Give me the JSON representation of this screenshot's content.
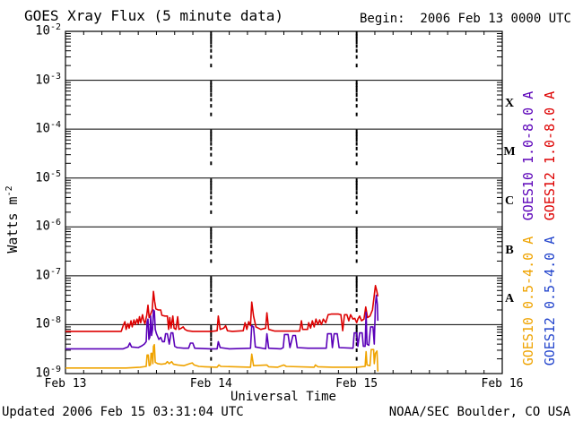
{
  "header": {
    "title": "GOES Xray Flux (5 minute data)",
    "begin_label": "Begin:  2006 Feb 13 0000 UTC"
  },
  "footer": {
    "updated": "Updated 2006 Feb 15 03:31:04 UTC",
    "source": "NOAA/SEC Boulder, CO USA"
  },
  "chart_data": {
    "type": "line",
    "title": "GOES Xray Flux (5 minute data)",
    "xlabel": "Universal Time",
    "ylabel_base": "Watts m",
    "ylabel_exp": "-2",
    "y_scale": "log",
    "ylim": [
      1e-09,
      0.01
    ],
    "y_tick_exponents": [
      -2,
      -3,
      -4,
      -5,
      -6,
      -7,
      -8,
      -9
    ],
    "x_ticks": [
      {
        "label": "Feb 13",
        "hour": 0
      },
      {
        "label": "Feb 14",
        "hour": 24
      },
      {
        "label": "Feb 15",
        "hour": 48
      },
      {
        "label": "Feb 16",
        "hour": 72
      }
    ],
    "x_minor_tick_hours": 3,
    "xlim_hours": [
      0,
      72
    ],
    "grid": {
      "horizontal_decade_lines": true,
      "dotted_vertical_day_lines_hours": [
        24,
        48
      ]
    },
    "flux_class_letters": [
      "X",
      "M",
      "C",
      "B",
      "A"
    ],
    "legend_position": "right-rotated",
    "series": [
      {
        "name": "GOES12 1.0-8.0 A",
        "color": "#dd0000",
        "points": [
          [
            0,
            7.3e-09
          ],
          [
            9.2,
            7.3e-09
          ],
          [
            9.5,
            9.5e-09
          ],
          [
            9.8,
            1.15e-08
          ],
          [
            10.0,
            8e-09
          ],
          [
            10.3,
            1.05e-08
          ],
          [
            10.5,
            8.5e-09
          ],
          [
            10.8,
            1.2e-08
          ],
          [
            11.0,
            9e-09
          ],
          [
            11.3,
            1.25e-08
          ],
          [
            11.5,
            1e-08
          ],
          [
            11.8,
            1.3e-08
          ],
          [
            12.0,
            1.05e-08
          ],
          [
            12.2,
            1.45e-08
          ],
          [
            12.4,
            1.1e-08
          ],
          [
            12.7,
            1.6e-08
          ],
          [
            12.9,
            1.2e-08
          ],
          [
            13.1,
            1.05e-08
          ],
          [
            13.4,
            1.55e-08
          ],
          [
            13.6,
            2.5e-08
          ],
          [
            13.8,
            1.4e-08
          ],
          [
            14.0,
            1.6e-08
          ],
          [
            14.3,
            2e-08
          ],
          [
            14.5,
            4.8e-08
          ],
          [
            14.7,
            3e-08
          ],
          [
            14.9,
            2.1e-08
          ],
          [
            15.3,
            2e-08
          ],
          [
            15.7,
            2e-08
          ],
          [
            15.9,
            1.55e-08
          ],
          [
            16.4,
            1.5e-08
          ],
          [
            16.8,
            1.5e-08
          ],
          [
            17.0,
            8e-09
          ],
          [
            17.2,
            1.4e-08
          ],
          [
            17.4,
            8.5e-09
          ],
          [
            17.7,
            1.5e-08
          ],
          [
            17.9,
            8.5e-09
          ],
          [
            18.2,
            8e-09
          ],
          [
            18.5,
            1.45e-08
          ],
          [
            18.7,
            8e-09
          ],
          [
            19.1,
            8.5e-09
          ],
          [
            19.4,
            9e-09
          ],
          [
            19.7,
            8e-09
          ],
          [
            20.1,
            7.5e-09
          ],
          [
            21.0,
            7.3e-09
          ],
          [
            24.0,
            7.3e-09
          ],
          [
            25.0,
            7.5e-09
          ],
          [
            25.2,
            1.5e-08
          ],
          [
            25.5,
            8e-09
          ],
          [
            26.1,
            8.5e-09
          ],
          [
            26.4,
            9.5e-09
          ],
          [
            26.7,
            7.5e-09
          ],
          [
            27.5,
            7.3e-09
          ],
          [
            29.3,
            7.5e-09
          ],
          [
            29.6,
            1.1e-08
          ],
          [
            29.9,
            8e-09
          ],
          [
            30.2,
            1.15e-08
          ],
          [
            30.5,
            9.5e-09
          ],
          [
            30.7,
            2.9e-08
          ],
          [
            31.0,
            1.5e-08
          ],
          [
            31.4,
            9e-09
          ],
          [
            32.2,
            8e-09
          ],
          [
            33.0,
            8.5e-09
          ],
          [
            33.2,
            1.75e-08
          ],
          [
            33.5,
            8e-09
          ],
          [
            34.5,
            7.4e-09
          ],
          [
            38.6,
            7.4e-09
          ],
          [
            38.9,
            1.2e-08
          ],
          [
            39.1,
            8e-09
          ],
          [
            39.9,
            8e-09
          ],
          [
            40.1,
            1.1e-08
          ],
          [
            40.4,
            8.5e-09
          ],
          [
            40.7,
            1.2e-08
          ],
          [
            41.0,
            9e-09
          ],
          [
            41.3,
            1.3e-08
          ],
          [
            41.6,
            1e-08
          ],
          [
            41.9,
            1.25e-08
          ],
          [
            42.2,
            1e-08
          ],
          [
            42.5,
            1.3e-08
          ],
          [
            42.9,
            1.1e-08
          ],
          [
            43.3,
            1.6e-08
          ],
          [
            43.8,
            1.65e-08
          ],
          [
            45.0,
            1.65e-08
          ],
          [
            45.4,
            1.6e-08
          ],
          [
            45.7,
            7.5e-09
          ],
          [
            46.0,
            1.6e-08
          ],
          [
            46.4,
            1.6e-08
          ],
          [
            46.7,
            1.2e-08
          ],
          [
            47.0,
            1.6e-08
          ],
          [
            47.4,
            1.3e-08
          ],
          [
            47.7,
            1.35e-08
          ],
          [
            48.0,
            1.1e-08
          ],
          [
            48.2,
            1.3e-08
          ],
          [
            48.5,
            1.5e-08
          ],
          [
            48.8,
            1.2e-08
          ],
          [
            49.2,
            1.3e-08
          ],
          [
            49.5,
            2.3e-08
          ],
          [
            49.8,
            1.4e-08
          ],
          [
            50.2,
            1.5e-08
          ],
          [
            50.6,
            2e-08
          ],
          [
            50.9,
            4e-08
          ],
          [
            51.1,
            6.3e-08
          ],
          [
            51.3,
            5e-08
          ],
          [
            51.5,
            3.8e-08
          ]
        ]
      },
      {
        "name": "GOES10 1.0-8.0 A",
        "color": "#5a00b8",
        "points": [
          [
            0,
            3.2e-09
          ],
          [
            9.5,
            3.2e-09
          ],
          [
            10.3,
            3.5e-09
          ],
          [
            10.6,
            4.2e-09
          ],
          [
            10.9,
            3.5e-09
          ],
          [
            12.0,
            3.4e-09
          ],
          [
            12.6,
            3.7e-09
          ],
          [
            13.0,
            4e-09
          ],
          [
            13.3,
            4.5e-09
          ],
          [
            13.45,
            1.15e-08
          ],
          [
            13.6,
            1.3e-08
          ],
          [
            13.75,
            5e-09
          ],
          [
            13.9,
            5.5e-09
          ],
          [
            14.05,
            1.5e-08
          ],
          [
            14.2,
            6e-09
          ],
          [
            14.35,
            8e-09
          ],
          [
            14.5,
            2e-08
          ],
          [
            14.65,
            1.9e-08
          ],
          [
            14.8,
            8e-09
          ],
          [
            15.0,
            6.5e-09
          ],
          [
            15.4,
            5e-09
          ],
          [
            15.7,
            5.5e-09
          ],
          [
            16.0,
            4.5e-09
          ],
          [
            16.3,
            4.5e-09
          ],
          [
            16.5,
            6.5e-09
          ],
          [
            16.8,
            6.5e-09
          ],
          [
            17.1,
            4e-09
          ],
          [
            17.4,
            6.8e-09
          ],
          [
            17.7,
            6.8e-09
          ],
          [
            18.0,
            3.6e-09
          ],
          [
            18.4,
            3.4e-09
          ],
          [
            19.5,
            3.3e-09
          ],
          [
            20.3,
            3.3e-09
          ],
          [
            20.6,
            4.2e-09
          ],
          [
            21.0,
            4.2e-09
          ],
          [
            21.3,
            3.3e-09
          ],
          [
            24.0,
            3.2e-09
          ],
          [
            25.0,
            3.2e-09
          ],
          [
            25.2,
            4.5e-09
          ],
          [
            25.5,
            3.4e-09
          ],
          [
            27.0,
            3.2e-09
          ],
          [
            30.5,
            3.3e-09
          ],
          [
            30.7,
            9.5e-09
          ],
          [
            31.0,
            9e-09
          ],
          [
            31.3,
            3.5e-09
          ],
          [
            33.0,
            3.2e-09
          ],
          [
            33.2,
            6.5e-09
          ],
          [
            33.5,
            3.3e-09
          ],
          [
            35.5,
            3.2e-09
          ],
          [
            35.9,
            3.4e-09
          ],
          [
            36.1,
            6.3e-09
          ],
          [
            36.7,
            6.3e-09
          ],
          [
            37.0,
            3.4e-09
          ],
          [
            37.5,
            6e-09
          ],
          [
            37.9,
            6e-09
          ],
          [
            38.2,
            3.4e-09
          ],
          [
            40.0,
            3.3e-09
          ],
          [
            43.0,
            3.3e-09
          ],
          [
            43.2,
            6.5e-09
          ],
          [
            43.8,
            6.5e-09
          ],
          [
            44.0,
            3.4e-09
          ],
          [
            44.3,
            6.5e-09
          ],
          [
            44.8,
            6.5e-09
          ],
          [
            45.1,
            3.4e-09
          ],
          [
            47.4,
            3.3e-09
          ],
          [
            47.6,
            6.8e-09
          ],
          [
            48.0,
            6.8e-09
          ],
          [
            48.2,
            3.6e-09
          ],
          [
            48.5,
            6.8e-09
          ],
          [
            48.9,
            6.8e-09
          ],
          [
            49.1,
            3.6e-09
          ],
          [
            49.4,
            3.6e-09
          ],
          [
            49.55,
            1.8e-08
          ],
          [
            49.7,
            4e-09
          ],
          [
            50.0,
            3.8e-09
          ],
          [
            50.3,
            9e-09
          ],
          [
            50.7,
            9e-09
          ],
          [
            50.9,
            4e-09
          ],
          [
            51.1,
            2.6e-08
          ],
          [
            51.25,
            4e-08
          ],
          [
            51.4,
            2.6e-08
          ],
          [
            51.5,
            1.2e-08
          ]
        ]
      },
      {
        "name": "GOES10 0.5-4.0 A",
        "color": "#efa300",
        "points": [
          [
            0,
            1.3e-09
          ],
          [
            10.0,
            1.3e-09
          ],
          [
            12.3,
            1.35e-09
          ],
          [
            13.3,
            1.4e-09
          ],
          [
            13.45,
            2.4e-09
          ],
          [
            13.65,
            2.4e-09
          ],
          [
            13.8,
            1.45e-09
          ],
          [
            14.0,
            1.5e-09
          ],
          [
            14.1,
            2.6e-09
          ],
          [
            14.25,
            2.6e-09
          ],
          [
            14.4,
            1.6e-09
          ],
          [
            14.5,
            3.6e-09
          ],
          [
            14.65,
            3.9e-09
          ],
          [
            14.8,
            1.7e-09
          ],
          [
            15.2,
            1.6e-09
          ],
          [
            15.8,
            1.55e-09
          ],
          [
            16.5,
            1.6e-09
          ],
          [
            16.8,
            1.75e-09
          ],
          [
            17.1,
            1.6e-09
          ],
          [
            17.5,
            1.75e-09
          ],
          [
            17.8,
            1.55e-09
          ],
          [
            18.5,
            1.5e-09
          ],
          [
            19.5,
            1.45e-09
          ],
          [
            20.5,
            1.6e-09
          ],
          [
            20.9,
            1.65e-09
          ],
          [
            21.2,
            1.5e-09
          ],
          [
            22.0,
            1.4e-09
          ],
          [
            23.0,
            1.38e-09
          ],
          [
            25.0,
            1.35e-09
          ],
          [
            25.3,
            1.5e-09
          ],
          [
            25.6,
            1.4e-09
          ],
          [
            30.5,
            1.35e-09
          ],
          [
            30.7,
            2.5e-09
          ],
          [
            31.0,
            1.45e-09
          ],
          [
            33.2,
            1.5e-09
          ],
          [
            33.5,
            1.38e-09
          ],
          [
            35.0,
            1.35e-09
          ],
          [
            36.0,
            1.5e-09
          ],
          [
            36.4,
            1.4e-09
          ],
          [
            41.0,
            1.35e-09
          ],
          [
            41.2,
            1.5e-09
          ],
          [
            41.6,
            1.38e-09
          ],
          [
            44.0,
            1.35e-09
          ],
          [
            48.0,
            1.35e-09
          ],
          [
            49.4,
            1.4e-09
          ],
          [
            49.55,
            2.8e-09
          ],
          [
            49.7,
            1.5e-09
          ],
          [
            50.2,
            1.45e-09
          ],
          [
            50.4,
            3.1e-09
          ],
          [
            50.8,
            3.1e-09
          ],
          [
            50.9,
            1.6e-09
          ],
          [
            51.1,
            2.6e-09
          ],
          [
            51.35,
            2.9e-09
          ],
          [
            51.5,
            1.1e-09
          ]
        ]
      },
      {
        "name": "GOES12 0.5-4.0 A",
        "color": "#2244cc",
        "points": []
      }
    ],
    "legend_entries": [
      {
        "label": "GOES10 1.0-8.0 A",
        "color": "#5a00b8"
      },
      {
        "label": "GOES12 1.0-8.0 A",
        "color": "#dd0000"
      },
      {
        "label": "GOES10 0.5-4.0 A",
        "color": "#efa300"
      },
      {
        "label": "GOES12 0.5-4.0 A",
        "color": "#2244cc"
      }
    ]
  }
}
